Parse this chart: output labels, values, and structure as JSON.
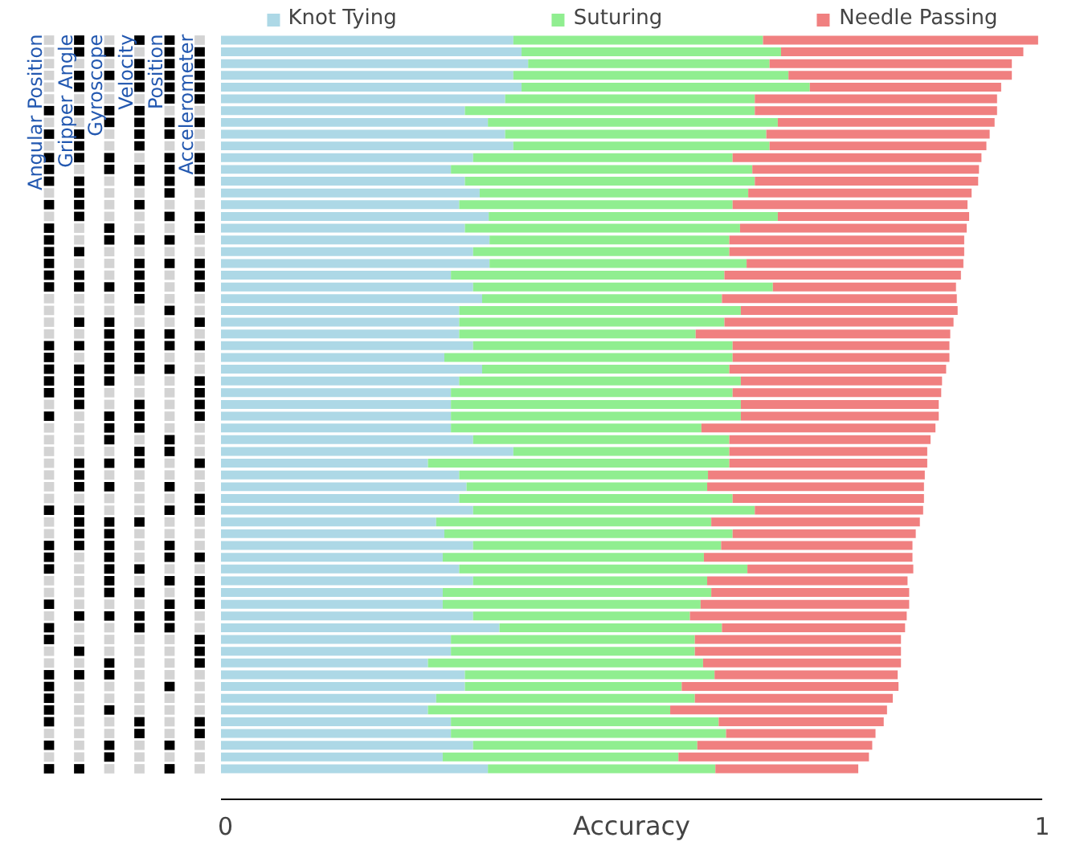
{
  "chart_data": [
    {
      "type": "heatmap",
      "categories": [
        "Angular Position",
        "Gripper Angle",
        "Gyroscope",
        "Velocity",
        "Position",
        "Accelerometer"
      ],
      "y_categories": [
        null,
        null,
        null,
        null,
        null,
        null,
        null,
        null,
        null,
        null,
        null,
        null,
        null,
        null,
        null,
        null,
        null,
        null,
        null,
        null,
        null,
        null,
        null,
        null,
        null,
        null,
        null,
        null,
        null,
        null,
        null,
        null,
        null,
        null,
        null,
        null,
        null,
        null,
        null,
        null,
        null,
        null,
        null,
        null,
        null,
        null,
        null,
        null,
        null,
        null,
        null,
        null,
        null,
        null,
        null,
        null,
        null,
        null,
        null,
        null,
        null,
        null,
        null
      ],
      "colors": [
        "#d3d3d3",
        "#000000"
      ],
      "cells": [
        [
          false,
          true,
          false,
          true,
          true,
          false
        ],
        [
          false,
          true,
          true,
          false,
          true,
          true
        ],
        [
          false,
          false,
          false,
          true,
          true,
          true
        ],
        [
          false,
          true,
          true,
          true,
          true,
          true
        ],
        [
          false,
          true,
          false,
          true,
          true,
          true
        ],
        [
          false,
          false,
          false,
          false,
          true,
          true
        ],
        [
          true,
          true,
          true,
          true,
          false,
          false
        ],
        [
          false,
          false,
          true,
          true,
          true,
          true
        ],
        [
          true,
          true,
          false,
          true,
          true,
          false
        ],
        [
          false,
          true,
          false,
          true,
          false,
          false
        ],
        [
          true,
          true,
          true,
          false,
          true,
          true
        ],
        [
          true,
          false,
          true,
          true,
          true,
          true
        ],
        [
          true,
          true,
          false,
          true,
          true,
          true
        ],
        [
          false,
          true,
          false,
          false,
          true,
          false
        ],
        [
          true,
          true,
          false,
          true,
          false,
          false
        ],
        [
          false,
          true,
          false,
          false,
          true,
          true
        ],
        [
          true,
          false,
          true,
          false,
          false,
          true
        ],
        [
          true,
          false,
          true,
          true,
          true,
          false
        ],
        [
          true,
          true,
          false,
          false,
          false,
          false
        ],
        [
          true,
          false,
          false,
          true,
          true,
          true
        ],
        [
          true,
          true,
          false,
          true,
          false,
          true
        ],
        [
          true,
          true,
          true,
          true,
          false,
          true
        ],
        [
          false,
          false,
          false,
          true,
          false,
          false
        ],
        [
          false,
          false,
          false,
          false,
          true,
          false
        ],
        [
          false,
          true,
          true,
          false,
          false,
          true
        ],
        [
          false,
          false,
          true,
          true,
          true,
          false
        ],
        [
          true,
          true,
          true,
          true,
          true,
          true
        ],
        [
          true,
          false,
          true,
          true,
          false,
          false
        ],
        [
          true,
          true,
          true,
          true,
          true,
          false
        ],
        [
          true,
          true,
          true,
          false,
          false,
          true
        ],
        [
          true,
          true,
          false,
          false,
          false,
          true
        ],
        [
          false,
          true,
          false,
          true,
          false,
          true
        ],
        [
          true,
          false,
          true,
          true,
          false,
          true
        ],
        [
          false,
          false,
          true,
          true,
          false,
          false
        ],
        [
          false,
          false,
          true,
          false,
          true,
          false
        ],
        [
          false,
          false,
          false,
          true,
          true,
          false
        ],
        [
          false,
          true,
          true,
          true,
          false,
          true
        ],
        [
          false,
          true,
          false,
          false,
          false,
          false
        ],
        [
          false,
          true,
          true,
          false,
          true,
          false
        ],
        [
          false,
          false,
          false,
          false,
          false,
          true
        ],
        [
          true,
          true,
          false,
          false,
          true,
          true
        ],
        [
          false,
          true,
          true,
          true,
          false,
          false
        ],
        [
          false,
          true,
          true,
          false,
          false,
          false
        ],
        [
          true,
          true,
          true,
          false,
          true,
          false
        ],
        [
          true,
          false,
          true,
          false,
          true,
          true
        ],
        [
          true,
          false,
          true,
          true,
          false,
          false
        ],
        [
          false,
          false,
          true,
          false,
          true,
          true
        ],
        [
          false,
          false,
          true,
          true,
          false,
          true
        ],
        [
          true,
          false,
          false,
          false,
          true,
          true
        ],
        [
          false,
          true,
          true,
          true,
          true,
          false
        ],
        [
          true,
          false,
          false,
          true,
          true,
          false
        ],
        [
          true,
          false,
          false,
          false,
          false,
          true
        ],
        [
          false,
          true,
          false,
          false,
          false,
          true
        ],
        [
          false,
          false,
          true,
          false,
          false,
          true
        ],
        [
          true,
          true,
          true,
          false,
          false,
          false
        ],
        [
          true,
          false,
          false,
          false,
          true,
          false
        ],
        [
          true,
          false,
          false,
          false,
          false,
          false
        ],
        [
          true,
          false,
          true,
          false,
          false,
          false
        ],
        [
          true,
          false,
          false,
          true,
          false,
          true
        ],
        [
          false,
          false,
          false,
          true,
          false,
          true
        ],
        [
          true,
          false,
          true,
          false,
          true,
          false
        ],
        [
          false,
          false,
          true,
          false,
          false,
          false
        ],
        [
          true,
          true,
          false,
          false,
          true,
          false
        ]
      ]
    },
    {
      "type": "bar",
      "orientation": "horizontal",
      "stacked": true,
      "xlabel": "Accuracy",
      "xlim": [
        0,
        1
      ],
      "xticks": [
        0,
        1
      ],
      "legend": "top",
      "categories": [
        null,
        null,
        null,
        null,
        null,
        null,
        null,
        null,
        null,
        null,
        null,
        null,
        null,
        null,
        null,
        null,
        null,
        null,
        null,
        null,
        null,
        null,
        null,
        null,
        null,
        null,
        null,
        null,
        null,
        null,
        null,
        null,
        null,
        null,
        null,
        null,
        null,
        null,
        null,
        null,
        null,
        null,
        null,
        null,
        null,
        null,
        null,
        null,
        null,
        null,
        null,
        null,
        null,
        null,
        null,
        null,
        null,
        null,
        null,
        null,
        null,
        null,
        null
      ],
      "series": [
        {
          "name": "Knot Tying",
          "color": "#add8e6",
          "values": [
            0.356,
            0.366,
            0.374,
            0.356,
            0.366,
            0.346,
            0.297,
            0.325,
            0.346,
            0.356,
            0.307,
            0.28,
            0.297,
            0.315,
            0.29,
            0.326,
            0.297,
            0.327,
            0.307,
            0.327,
            0.28,
            0.307,
            0.318,
            0.29,
            0.29,
            0.29,
            0.307,
            0.272,
            0.318,
            0.29,
            0.28,
            0.28,
            0.28,
            0.28,
            0.307,
            0.356,
            0.252,
            0.29,
            0.299,
            0.29,
            0.307,
            0.262,
            0.272,
            0.307,
            0.27,
            0.29,
            0.307,
            0.27,
            0.27,
            0.307,
            0.339,
            0.28,
            0.28,
            0.252,
            0.297,
            0.297,
            0.262,
            0.252,
            0.28,
            0.28,
            0.307,
            0.27,
            0.325
          ]
        },
        {
          "name": "Suturing",
          "color": "#90ee90",
          "values": [
            0.304,
            0.316,
            0.294,
            0.335,
            0.351,
            0.304,
            0.353,
            0.353,
            0.318,
            0.312,
            0.316,
            0.367,
            0.353,
            0.327,
            0.333,
            0.352,
            0.335,
            0.292,
            0.312,
            0.313,
            0.333,
            0.365,
            0.292,
            0.343,
            0.323,
            0.288,
            0.316,
            0.351,
            0.301,
            0.343,
            0.343,
            0.353,
            0.353,
            0.305,
            0.312,
            0.263,
            0.367,
            0.303,
            0.293,
            0.333,
            0.343,
            0.335,
            0.351,
            0.302,
            0.318,
            0.351,
            0.285,
            0.327,
            0.314,
            0.264,
            0.271,
            0.297,
            0.297,
            0.335,
            0.304,
            0.264,
            0.315,
            0.295,
            0.326,
            0.335,
            0.273,
            0.287,
            0.277
          ]
        },
        {
          "name": "Needle Passing",
          "color": "#f08080",
          "values": [
            0.335,
            0.295,
            0.295,
            0.272,
            0.233,
            0.295,
            0.295,
            0.264,
            0.272,
            0.264,
            0.303,
            0.276,
            0.272,
            0.272,
            0.286,
            0.233,
            0.276,
            0.286,
            0.286,
            0.264,
            0.288,
            0.223,
            0.286,
            0.264,
            0.279,
            0.31,
            0.264,
            0.264,
            0.264,
            0.245,
            0.254,
            0.241,
            0.241,
            0.285,
            0.245,
            0.241,
            0.241,
            0.264,
            0.264,
            0.233,
            0.205,
            0.254,
            0.223,
            0.233,
            0.254,
            0.202,
            0.244,
            0.241,
            0.254,
            0.264,
            0.223,
            0.251,
            0.251,
            0.241,
            0.223,
            0.264,
            0.241,
            0.264,
            0.201,
            0.182,
            0.213,
            0.232,
            0.174
          ]
        }
      ]
    }
  ]
}
